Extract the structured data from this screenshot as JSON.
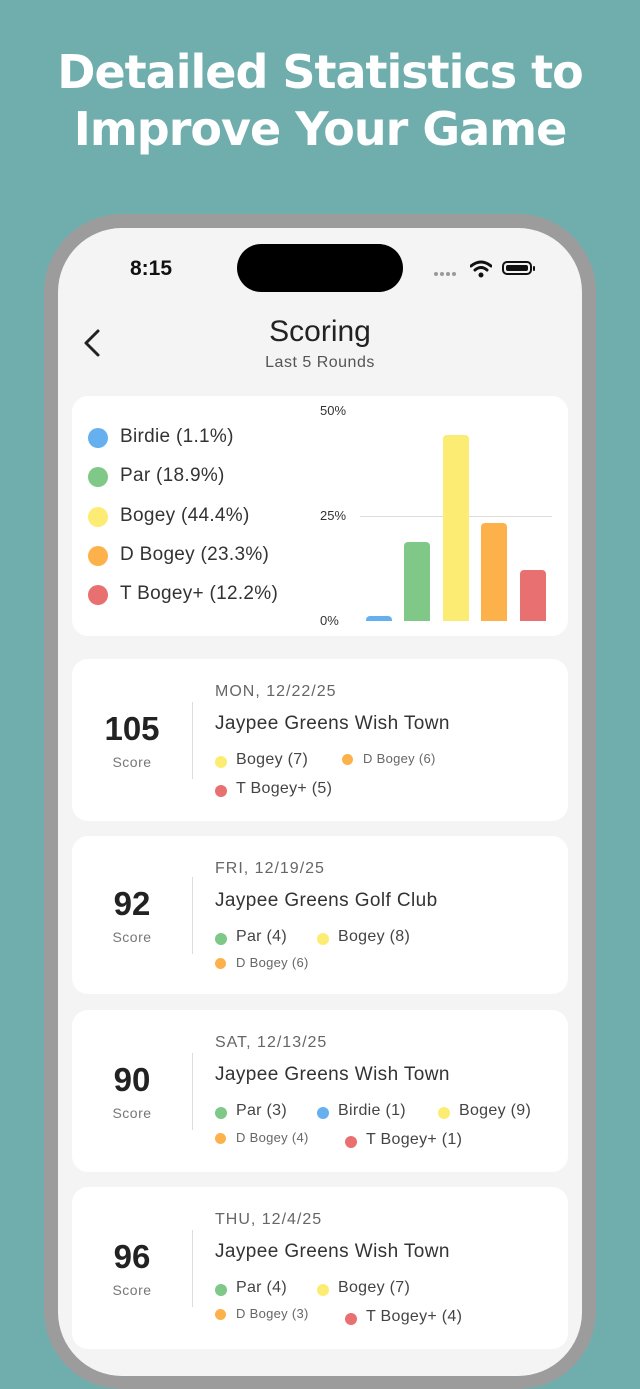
{
  "headline": {
    "line1": "Detailed Statistics to",
    "line2": "Improve Your Game"
  },
  "status_bar": {
    "time": "8:15"
  },
  "nav": {
    "title": "Scoring",
    "subtitle": "Last 5 Rounds"
  },
  "colors": {
    "birdie": "#66b0f0",
    "par": "#7fc887",
    "bogey": "#fdec74",
    "d_bogey": "#fcb14b",
    "t_bogey": "#e87070"
  },
  "chart_data": {
    "type": "bar",
    "categories": [
      "Birdie",
      "Par",
      "Bogey",
      "D Bogey",
      "T Bogey+"
    ],
    "values": [
      1.1,
      18.9,
      44.4,
      23.3,
      12.2
    ],
    "legend": [
      "Birdie (1.1%)",
      "Par (18.9%)",
      "Bogey (44.4%)",
      "D Bogey (23.3%)",
      "T Bogey+ (12.2%)"
    ],
    "yticks": [
      "0%",
      "25%",
      "50%"
    ],
    "ylim": [
      0,
      50
    ],
    "grid": true,
    "legend_position": "left"
  },
  "rounds": [
    {
      "score": "105",
      "score_label": "Score",
      "date": "MON, 12/22/25",
      "course": "Jaypee Greens Wish Town",
      "tags": [
        {
          "label": "Bogey (7)",
          "color": "#fdec74"
        },
        {
          "label": "D Bogey (6)",
          "color": "#fcb14b"
        },
        {
          "label": "T Bogey+ (5)",
          "color": "#e87070"
        }
      ]
    },
    {
      "score": "92",
      "score_label": "Score",
      "date": "FRI, 12/19/25",
      "course": "Jaypee Greens Golf Club",
      "tags": [
        {
          "label": "Par (4)",
          "color": "#7fc887"
        },
        {
          "label": "Bogey (8)",
          "color": "#fdec74"
        },
        {
          "label": "D Bogey (6)",
          "color": "#fcb14b"
        }
      ]
    },
    {
      "score": "90",
      "score_label": "Score",
      "date": "SAT, 12/13/25",
      "course": "Jaypee Greens Wish Town",
      "tags": [
        {
          "label": "Par (3)",
          "color": "#7fc887"
        },
        {
          "label": "Birdie (1)",
          "color": "#66b0f0"
        },
        {
          "label": "Bogey (9)",
          "color": "#fdec74"
        },
        {
          "label": "D Bogey (4)",
          "color": "#fcb14b"
        },
        {
          "label": "T Bogey+ (1)",
          "color": "#e87070"
        }
      ]
    },
    {
      "score": "96",
      "score_label": "Score",
      "date": "THU, 12/4/25",
      "course": "Jaypee Greens Wish Town",
      "tags": [
        {
          "label": "Par (4)",
          "color": "#7fc887"
        },
        {
          "label": "Bogey (7)",
          "color": "#fdec74"
        },
        {
          "label": "D Bogey (3)",
          "color": "#fcb14b"
        },
        {
          "label": "T Bogey+ (4)",
          "color": "#e87070"
        }
      ]
    }
  ]
}
